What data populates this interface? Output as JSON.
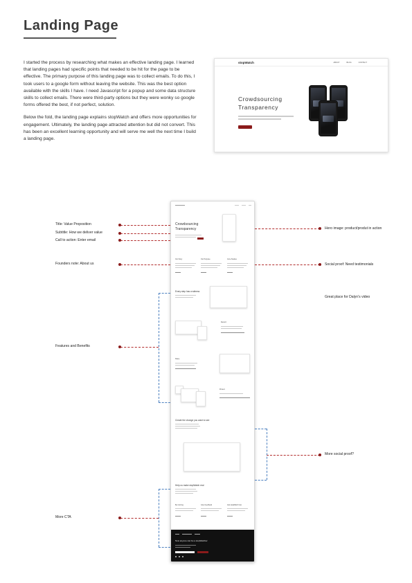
{
  "page": {
    "title": "Landing Page",
    "intro_paragraphs": [
      "I started the process by researching what makes an effective landing page. I learned that landing pages had specific points that needed to be hit for the page to be effective. The primary purpose of this landing page was to collect emails. To do this, I took users to a google form without leaving the website. This was the best option available with the skills I have. I need Javascript for a popup and some data structure skills to collect emails. There were third-party options but they were wonky so google forms offered the best, if not perfect, solution.",
      "Below the fold, the landing page explains stopWatch and offers more opportunities for engagement. Ultimately, the landing page attracted attention but did not convert. This has been an excellent learning opportunity and will serve me well the next time I build a landing page."
    ]
  },
  "hero_mockup": {
    "logo": "stopWatch",
    "nav": [
      "ABOUT",
      "BLOG",
      "CONTACT"
    ],
    "headline": "Crowdsourcing Transparency"
  },
  "annotations": {
    "left": [
      "Title: Value Proposition",
      "Subtitle: How we deliver value",
      "Call to action: Enter email",
      "Founders note: About us",
      "Features and Benefits",
      "More CTA"
    ],
    "right": [
      "Hero image: product/produt in action",
      "Social proof: Need testimonials",
      "Great place for Dalyn's video",
      "More social proof?"
    ]
  },
  "long_mockup": {
    "hero_title": "Crowdsourcing Transparency",
    "columns": [
      "Our Story",
      "Our Purpose",
      "Core Studies"
    ],
    "section_every_step": "Every step has a witness",
    "feature_labels": [
      "Record",
      "Share",
      "Protect"
    ],
    "section_change": "Create the change you want to see",
    "section_help": "Help us make stopWatch real",
    "help_columns": [
      "Be Coming",
      "Give Feedback",
      "Ask stopWatch how"
    ],
    "footer_title": "Now anyone can be a stopWatcher"
  }
}
